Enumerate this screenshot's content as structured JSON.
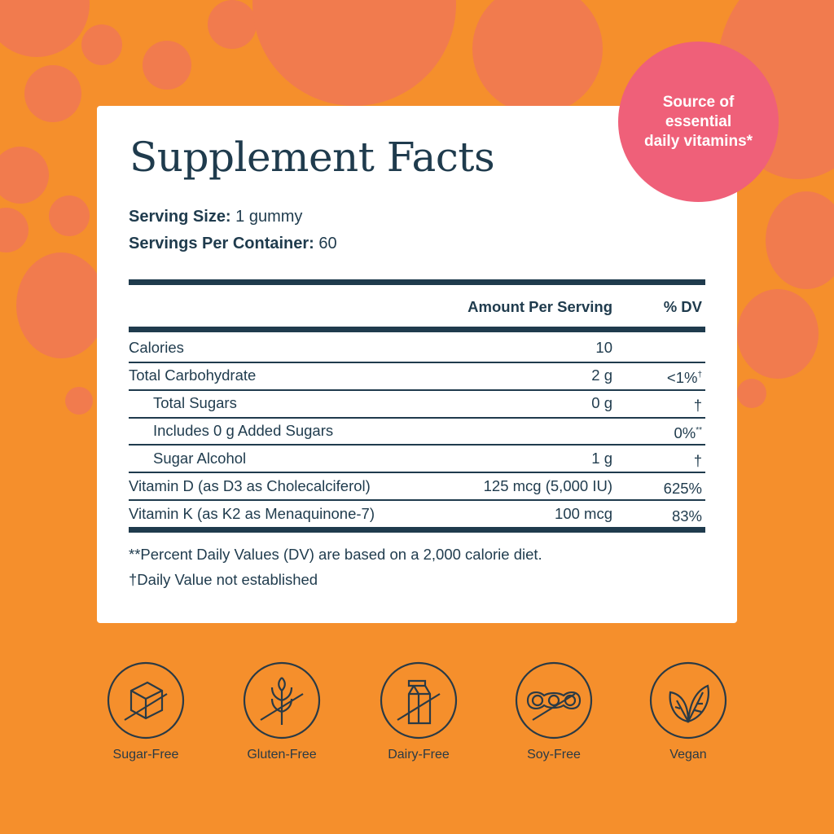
{
  "badge": {
    "text": "Source of\nessential\ndaily vitamins*",
    "color": "#ef6079"
  },
  "colors": {
    "background": "#f58f2c",
    "bubble": "#f17b4e",
    "ink": "#1f3b4d"
  },
  "facts": {
    "title": "Supplement Facts",
    "serving_size_label": "Serving Size:",
    "serving_size_value": "1 gummy",
    "servings_label": "Servings Per Container:",
    "servings_value": "60",
    "header": {
      "amount": "Amount Per Serving",
      "dv": "% DV"
    },
    "rows": [
      {
        "label": "Calories",
        "amount": "10",
        "dv": "",
        "sup": ""
      },
      {
        "label": "Total Carbohydrate",
        "amount": "2 g",
        "dv": "<1%",
        "sup": "†"
      },
      {
        "label": "Total Sugars",
        "amount": "0 g",
        "dv": "†",
        "sup": ""
      },
      {
        "label": "Includes 0 g Added Sugars",
        "amount": "",
        "dv": "0%",
        "sup": "**"
      },
      {
        "label": "Sugar Alcohol",
        "amount": "1 g",
        "dv": "†",
        "sup": ""
      },
      {
        "label": "Vitamin D (as D3 as Cholecalciferol)",
        "amount": "125 mcg (5,000 IU)",
        "dv": "625%",
        "sup": ""
      },
      {
        "label": "Vitamin K (as K2 as Menaquinone-7)",
        "amount": "100 mcg",
        "dv": "83%",
        "sup": ""
      }
    ],
    "footnote1": "**Percent Daily Values (DV) are based on a 2,000 calorie diet.",
    "footnote2": "†Daily Value not established"
  },
  "features": [
    {
      "label": "Sugar-Free",
      "icon": "sugar-cube-crossed-icon"
    },
    {
      "label": "Gluten-Free",
      "icon": "wheat-crossed-icon"
    },
    {
      "label": "Dairy-Free",
      "icon": "milk-carton-crossed-icon"
    },
    {
      "label": "Soy-Free",
      "icon": "soybean-crossed-icon"
    },
    {
      "label": "Vegan",
      "icon": "leaves-icon"
    }
  ]
}
